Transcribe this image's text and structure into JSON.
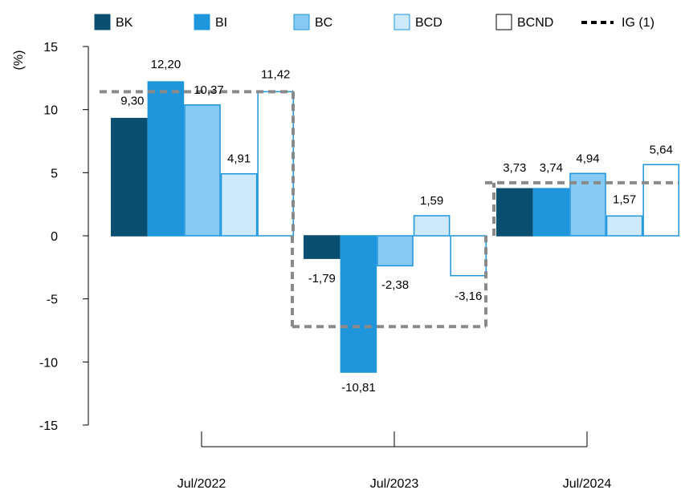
{
  "chart_data": {
    "type": "bar",
    "ylabel": "(%)",
    "ylim": [
      -15,
      15
    ],
    "yticks": [
      -15,
      -10,
      -5,
      0,
      5,
      10,
      15
    ],
    "ytick_labels": [
      "-15",
      "-10",
      "-5",
      "0",
      "5",
      "10",
      "15"
    ],
    "categories": [
      "Jul/2022",
      "Jul/2023",
      "Jul/2024"
    ],
    "legend_position": "top",
    "grid": false,
    "series": [
      {
        "name": "BK",
        "color": "#0b4f70",
        "stroke": "#0b4f70",
        "values": [
          9.3,
          -1.79,
          3.73
        ],
        "labels": [
          "9,30",
          "-1,79",
          "3,73"
        ]
      },
      {
        "name": "BI",
        "color": "#1f96dc",
        "stroke": "#1f96dc",
        "values": [
          12.2,
          -10.81,
          3.74
        ],
        "labels": [
          "12,20",
          "-10,81",
          "3,74"
        ]
      },
      {
        "name": "BC",
        "color": "#86c9f2",
        "stroke": "#1f96dc",
        "values": [
          10.37,
          -2.38,
          4.94
        ],
        "labels": [
          "10,37",
          "-2,38",
          "4,94"
        ]
      },
      {
        "name": "BCD",
        "color": "#cde9fb",
        "stroke": "#1f96dc",
        "values": [
          4.91,
          1.59,
          1.57
        ],
        "labels": [
          "4,91",
          "1,59",
          "1,57"
        ]
      },
      {
        "name": "BCND",
        "color": "#ffffff",
        "stroke": "#1f96dc",
        "values": [
          11.42,
          -3.16,
          5.64
        ],
        "labels": [
          "11,42",
          "-3,16",
          "5,64"
        ]
      }
    ],
    "reference_line": {
      "name": "IG (1)",
      "style": "dashed",
      "color": "#8a8a8a",
      "values": [
        11.42,
        -7.2,
        4.2
      ]
    }
  }
}
